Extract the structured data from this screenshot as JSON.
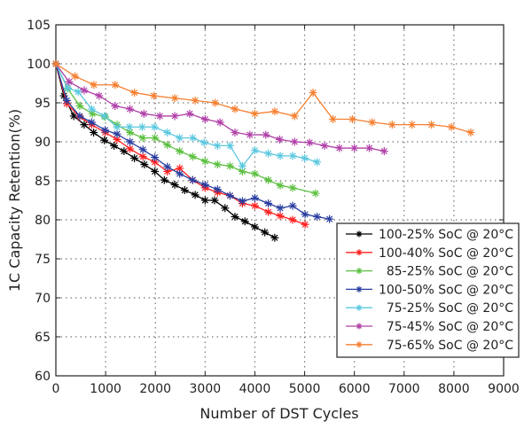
{
  "chart_data": {
    "type": "line",
    "title": "",
    "xlabel": "Number of DST Cycles",
    "ylabel": "1C Capacity Retention(%)",
    "xlim": [
      0,
      9000
    ],
    "ylim": [
      60,
      105
    ],
    "xticks": [
      0,
      1000,
      2000,
      3000,
      4000,
      5000,
      6000,
      7000,
      8000,
      9000
    ],
    "yticks": [
      60,
      65,
      70,
      75,
      80,
      85,
      90,
      95,
      100,
      105
    ],
    "grid": true,
    "legend_position": "bottom-right",
    "series": [
      {
        "name": "100-25% SoC @ 20°C",
        "color": "#000000",
        "x": [
          0,
          160,
          360,
          570,
          760,
          975,
          1170,
          1370,
          1580,
          1780,
          1990,
          2180,
          2390,
          2590,
          2800,
          3000,
          3190,
          3400,
          3600,
          3800,
          4000,
          4200,
          4400
        ],
        "y": [
          100,
          95.9,
          93.3,
          92.2,
          91.2,
          90.2,
          89.5,
          88.8,
          87.9,
          87.1,
          86.2,
          85.1,
          84.5,
          83.8,
          83.2,
          82.5,
          82.5,
          81.5,
          80.4,
          79.8,
          79.1,
          78.4,
          77.7
        ]
      },
      {
        "name": "100-40% SoC @ 20°C",
        "color": "#ff2020",
        "x": [
          0,
          220,
          480,
          720,
          990,
          1230,
          1490,
          1750,
          1990,
          2240,
          2490,
          2750,
          3000,
          3250,
          3500,
          3750,
          4000,
          4270,
          4510,
          4760,
          5010
        ],
        "y": [
          100,
          94.9,
          93.2,
          92.2,
          91.2,
          90.3,
          89.1,
          88.1,
          87.4,
          86.2,
          86.6,
          85.1,
          84.1,
          83.5,
          83.1,
          82.1,
          81.8,
          81.0,
          80.5,
          80.0,
          79.4
        ]
      },
      {
        "name": "85-25% SoC @ 20°C",
        "color": "#5cc040",
        "x": [
          0,
          240,
          480,
          735,
          990,
          1230,
          1490,
          1750,
          1990,
          2240,
          2490,
          2750,
          3000,
          3250,
          3500,
          3750,
          4000,
          4270,
          4510,
          4760,
          5220
        ],
        "y": [
          100,
          96.8,
          94.6,
          93.6,
          93.2,
          92.2,
          91.2,
          90.5,
          90.5,
          89.6,
          88.8,
          88.1,
          87.5,
          87.1,
          86.9,
          86.2,
          85.9,
          85.1,
          84.4,
          84.1,
          83.4
        ]
      },
      {
        "name": "100-50% SoC @ 20°C",
        "color": "#2a3ea0",
        "x": [
          0,
          220,
          480,
          720,
          990,
          1230,
          1490,
          1750,
          1990,
          2240,
          2490,
          2750,
          3000,
          3250,
          3500,
          3750,
          4000,
          4270,
          4510,
          4760,
          5010,
          5250,
          5500
        ],
        "y": [
          100,
          95.3,
          93.3,
          92.5,
          91.5,
          91.0,
          90.0,
          89.0,
          88.0,
          86.8,
          85.9,
          85.1,
          84.5,
          83.9,
          83.1,
          82.4,
          82.8,
          82.1,
          81.5,
          81.8,
          80.7,
          80.4,
          80.1
        ]
      },
      {
        "name": "75-25% SoC @ 20°C",
        "color": "#5cc8e0",
        "x": [
          0,
          240,
          450,
          720,
          975,
          1230,
          1480,
          1735,
          1980,
          2240,
          2490,
          2750,
          2980,
          3250,
          3500,
          3750,
          4000,
          4270,
          4510,
          4760,
          5000,
          5250
        ],
        "y": [
          100,
          96.9,
          96.4,
          94.2,
          93.3,
          91.9,
          91.9,
          91.9,
          91.9,
          91.2,
          90.5,
          90.5,
          89.9,
          89.5,
          89.5,
          86.9,
          88.9,
          88.5,
          88.2,
          88.2,
          87.9,
          87.4
        ]
      },
      {
        "name": "75-45% SoC @ 20°C",
        "color": "#b040a8",
        "x": [
          0,
          265,
          570,
          870,
          1190,
          1490,
          1770,
          2090,
          2390,
          2690,
          3000,
          3300,
          3600,
          3900,
          4220,
          4500,
          4800,
          5100,
          5400,
          5700,
          6000,
          6300,
          6600
        ],
        "y": [
          100,
          97.7,
          96.6,
          95.9,
          94.6,
          94.2,
          93.6,
          93.3,
          93.3,
          93.6,
          92.9,
          92.5,
          91.2,
          90.9,
          90.9,
          90.3,
          90.0,
          89.9,
          89.5,
          89.2,
          89.2,
          89.2,
          88.8
        ]
      },
      {
        "name": "75-65% SoC @ 20°C",
        "color": "#f57f30",
        "x": [
          0,
          385,
          765,
          1190,
          1580,
          1970,
          2390,
          2800,
          3200,
          3600,
          4000,
          4400,
          4800,
          5170,
          5570,
          5960,
          6360,
          6760,
          7160,
          7550,
          7950,
          8340
        ],
        "y": [
          100,
          98.4,
          97.3,
          97.3,
          96.3,
          95.9,
          95.6,
          95.3,
          95.0,
          94.2,
          93.6,
          93.9,
          93.3,
          96.3,
          92.9,
          92.9,
          92.5,
          92.2,
          92.2,
          92.2,
          91.9,
          91.2
        ]
      }
    ]
  }
}
